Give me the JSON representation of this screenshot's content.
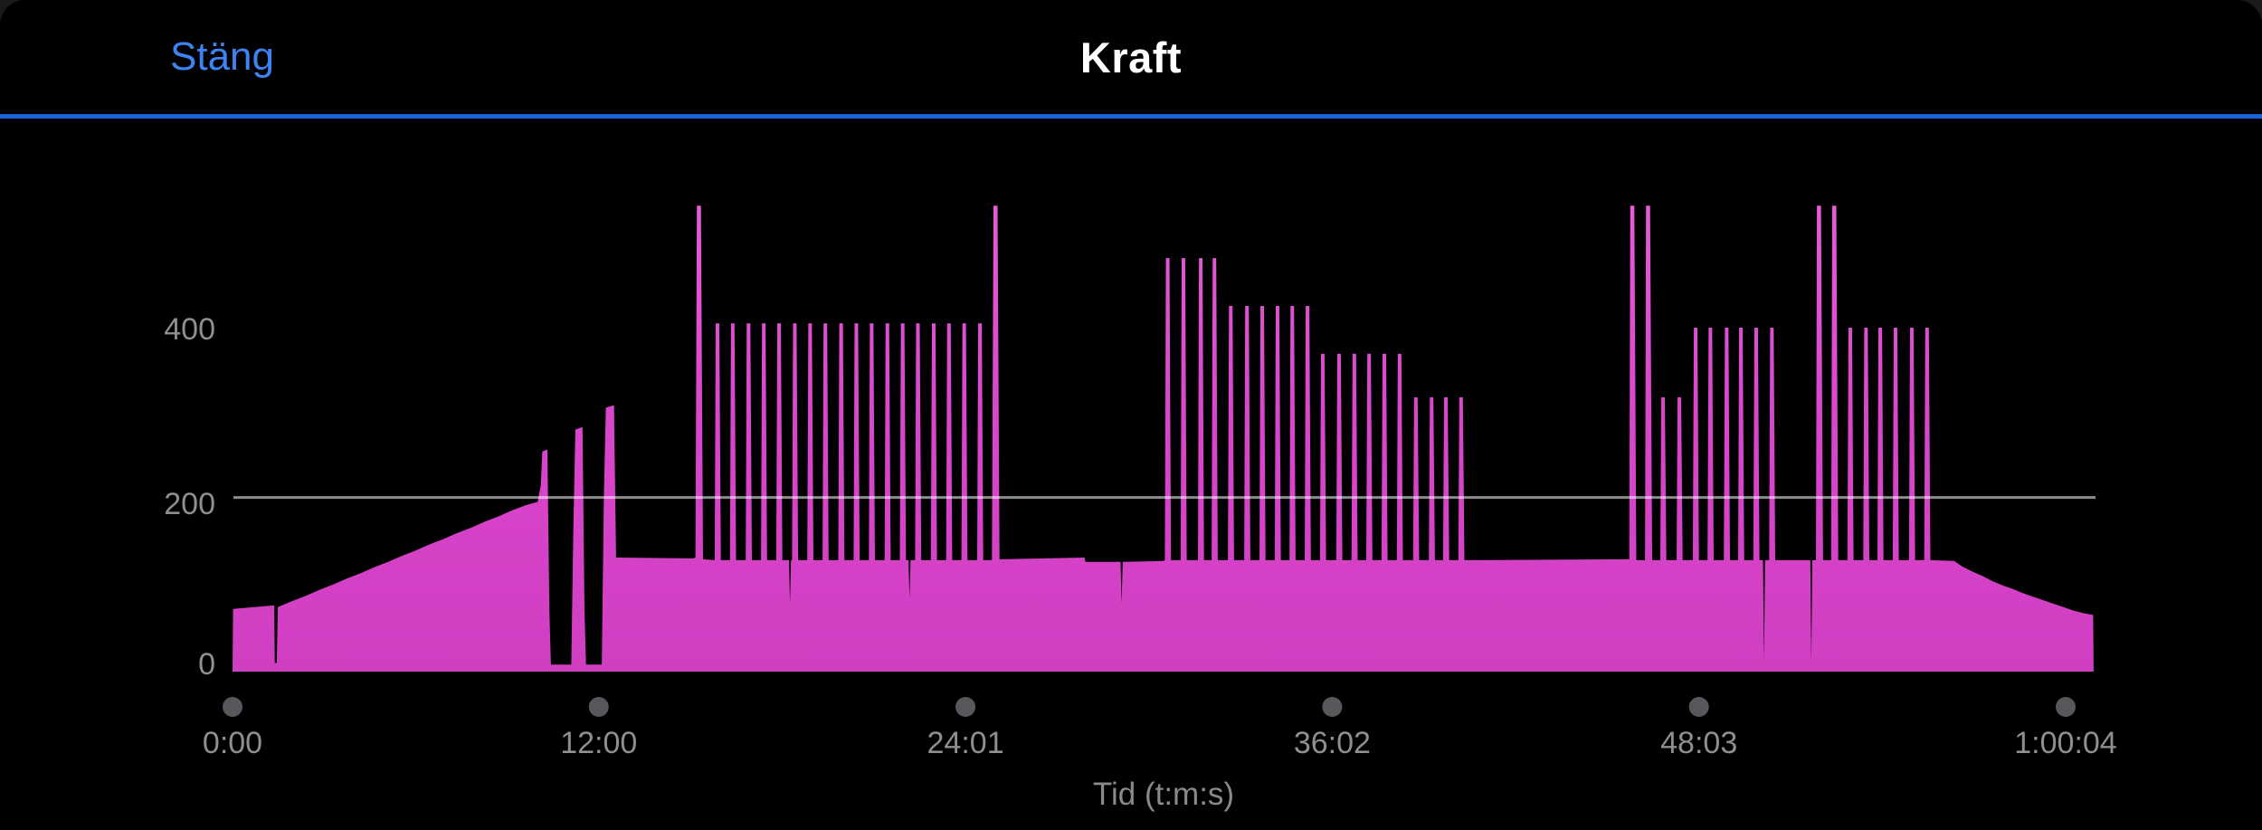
{
  "navbar": {
    "close_label": "Stäng",
    "title": "Kraft"
  },
  "colors": {
    "background": "#000000",
    "nav_separator_blue": "#1a63d8",
    "close_button_blue": "#3f83f2",
    "title_white": "#ffffff",
    "axis_gray": "#8e8e93",
    "tick_dot_gray": "#58585c",
    "gridline": "rgba(255,255,255,0.55)",
    "series_magenta_top": "#e45cd6",
    "series_magenta_mid": "#d946cc",
    "series_magenta_bottom": "#d03ec2"
  },
  "chart_data": {
    "type": "area",
    "title": "Kraft",
    "xlabel": "Tid (t:m:s)",
    "ylabel": "",
    "legend": false,
    "grid": "single horizontal gridline at y=200",
    "gridline_value": 200,
    "ylim": [
      0,
      580
    ],
    "xlim_seconds": [
      0,
      3660
    ],
    "y_ticks": [
      {
        "v": 0,
        "label": "0"
      },
      {
        "v": 200,
        "label": "200"
      },
      {
        "v": 400,
        "label": "400"
      }
    ],
    "x_ticks": [
      {
        "t": 0,
        "label": "0:00"
      },
      {
        "t": 720,
        "label": "12:00"
      },
      {
        "t": 1441,
        "label": "24:01"
      },
      {
        "t": 2162,
        "label": "36:02"
      },
      {
        "t": 2883,
        "label": "48:03"
      },
      {
        "t": 3604,
        "label": "1:00:04"
      }
    ],
    "series": [
      {
        "name": "Kraft",
        "style": "filled-area",
        "points": [
          [
            0,
            0
          ],
          [
            1,
            72
          ],
          [
            60,
            75
          ],
          [
            82,
            76
          ],
          [
            83,
            10
          ],
          [
            87,
            10
          ],
          [
            89,
            74
          ],
          [
            117,
            81
          ],
          [
            144,
            87
          ],
          [
            171,
            94
          ],
          [
            198,
            100
          ],
          [
            225,
            107
          ],
          [
            252,
            113
          ],
          [
            279,
            120
          ],
          [
            306,
            126
          ],
          [
            333,
            133
          ],
          [
            360,
            139
          ],
          [
            387,
            146
          ],
          [
            414,
            152
          ],
          [
            441,
            159
          ],
          [
            468,
            165
          ],
          [
            495,
            172
          ],
          [
            522,
            178
          ],
          [
            549,
            185
          ],
          [
            576,
            191
          ],
          [
            600,
            195
          ],
          [
            606,
            214
          ],
          [
            609,
            253
          ],
          [
            619,
            255
          ],
          [
            623,
            70
          ],
          [
            626,
            8
          ],
          [
            666,
            8
          ],
          [
            670,
            160
          ],
          [
            674,
            278
          ],
          [
            688,
            281
          ],
          [
            692,
            70
          ],
          [
            695,
            8
          ],
          [
            726,
            8
          ],
          [
            730,
            200
          ],
          [
            734,
            303
          ],
          [
            750,
            306
          ],
          [
            754,
            131
          ],
          [
            906,
            130
          ],
          [
            910,
            131
          ],
          [
            913,
            535
          ],
          [
            921,
            535
          ],
          [
            925,
            129
          ],
          [
            948,
            128
          ],
          [
            950,
            400
          ],
          [
            957,
            400
          ],
          [
            960,
            128
          ],
          [
            978,
            128
          ],
          [
            980,
            400
          ],
          [
            987,
            400
          ],
          [
            990,
            128
          ],
          [
            1009,
            128
          ],
          [
            1011,
            400
          ],
          [
            1018,
            400
          ],
          [
            1021,
            128
          ],
          [
            1039,
            128
          ],
          [
            1041,
            400
          ],
          [
            1048,
            400
          ],
          [
            1051,
            128
          ],
          [
            1069,
            128
          ],
          [
            1071,
            400
          ],
          [
            1078,
            400
          ],
          [
            1081,
            128
          ],
          [
            1094,
            128
          ],
          [
            1096,
            78
          ],
          [
            1098,
            128
          ],
          [
            1100,
            128
          ],
          [
            1102,
            400
          ],
          [
            1109,
            400
          ],
          [
            1112,
            128
          ],
          [
            1130,
            128
          ],
          [
            1132,
            400
          ],
          [
            1139,
            400
          ],
          [
            1142,
            128
          ],
          [
            1160,
            128
          ],
          [
            1162,
            400
          ],
          [
            1169,
            400
          ],
          [
            1172,
            128
          ],
          [
            1191,
            128
          ],
          [
            1193,
            400
          ],
          [
            1200,
            400
          ],
          [
            1203,
            128
          ],
          [
            1221,
            128
          ],
          [
            1223,
            400
          ],
          [
            1230,
            400
          ],
          [
            1233,
            128
          ],
          [
            1251,
            128
          ],
          [
            1253,
            400
          ],
          [
            1260,
            400
          ],
          [
            1263,
            128
          ],
          [
            1282,
            128
          ],
          [
            1284,
            400
          ],
          [
            1291,
            400
          ],
          [
            1294,
            128
          ],
          [
            1312,
            128
          ],
          [
            1314,
            400
          ],
          [
            1321,
            400
          ],
          [
            1324,
            128
          ],
          [
            1329,
            128
          ],
          [
            1331,
            85
          ],
          [
            1333,
            128
          ],
          [
            1342,
            128
          ],
          [
            1344,
            400
          ],
          [
            1351,
            400
          ],
          [
            1354,
            128
          ],
          [
            1373,
            128
          ],
          [
            1375,
            400
          ],
          [
            1382,
            400
          ],
          [
            1385,
            128
          ],
          [
            1403,
            128
          ],
          [
            1405,
            400
          ],
          [
            1412,
            400
          ],
          [
            1415,
            128
          ],
          [
            1433,
            128
          ],
          [
            1435,
            400
          ],
          [
            1442,
            400
          ],
          [
            1445,
            128
          ],
          [
            1464,
            128
          ],
          [
            1466,
            400
          ],
          [
            1473,
            400
          ],
          [
            1476,
            128
          ],
          [
            1493,
            128
          ],
          [
            1496,
            535
          ],
          [
            1504,
            535
          ],
          [
            1508,
            129
          ],
          [
            1675,
            131
          ],
          [
            1677,
            126
          ],
          [
            1746,
            126
          ],
          [
            1748,
            78
          ],
          [
            1750,
            126
          ],
          [
            1830,
            127
          ],
          [
            1833,
            128
          ],
          [
            1835,
            475
          ],
          [
            1842,
            475
          ],
          [
            1845,
            128
          ],
          [
            1864,
            128
          ],
          [
            1866,
            475
          ],
          [
            1873,
            475
          ],
          [
            1876,
            128
          ],
          [
            1898,
            128
          ],
          [
            1900,
            475
          ],
          [
            1907,
            475
          ],
          [
            1910,
            128
          ],
          [
            1925,
            128
          ],
          [
            1927,
            475
          ],
          [
            1934,
            475
          ],
          [
            1937,
            128
          ],
          [
            1957,
            128
          ],
          [
            1959,
            420
          ],
          [
            1966,
            420
          ],
          [
            1969,
            128
          ],
          [
            1989,
            128
          ],
          [
            1991,
            420
          ],
          [
            1998,
            420
          ],
          [
            2001,
            128
          ],
          [
            2019,
            128
          ],
          [
            2021,
            420
          ],
          [
            2028,
            420
          ],
          [
            2031,
            128
          ],
          [
            2049,
            128
          ],
          [
            2051,
            420
          ],
          [
            2058,
            420
          ],
          [
            2061,
            128
          ],
          [
            2078,
            128
          ],
          [
            2080,
            420
          ],
          [
            2087,
            420
          ],
          [
            2090,
            128
          ],
          [
            2108,
            128
          ],
          [
            2110,
            420
          ],
          [
            2117,
            420
          ],
          [
            2120,
            128
          ],
          [
            2138,
            128
          ],
          [
            2140,
            365
          ],
          [
            2147,
            365
          ],
          [
            2150,
            128
          ],
          [
            2170,
            128
          ],
          [
            2172,
            365
          ],
          [
            2179,
            365
          ],
          [
            2182,
            128
          ],
          [
            2200,
            128
          ],
          [
            2202,
            365
          ],
          [
            2209,
            365
          ],
          [
            2212,
            128
          ],
          [
            2229,
            128
          ],
          [
            2231,
            365
          ],
          [
            2238,
            365
          ],
          [
            2241,
            128
          ],
          [
            2259,
            128
          ],
          [
            2261,
            365
          ],
          [
            2268,
            365
          ],
          [
            2271,
            128
          ],
          [
            2289,
            128
          ],
          [
            2291,
            365
          ],
          [
            2298,
            365
          ],
          [
            2301,
            128
          ],
          [
            2321,
            128
          ],
          [
            2323,
            315
          ],
          [
            2330,
            315
          ],
          [
            2333,
            128
          ],
          [
            2352,
            128
          ],
          [
            2354,
            315
          ],
          [
            2361,
            315
          ],
          [
            2364,
            128
          ],
          [
            2380,
            128
          ],
          [
            2382,
            315
          ],
          [
            2389,
            315
          ],
          [
            2392,
            128
          ],
          [
            2410,
            128
          ],
          [
            2412,
            315
          ],
          [
            2419,
            315
          ],
          [
            2422,
            128
          ],
          [
            2740,
            129
          ],
          [
            2746,
            129
          ],
          [
            2748,
            535
          ],
          [
            2756,
            535
          ],
          [
            2760,
            128
          ],
          [
            2777,
            128
          ],
          [
            2779,
            535
          ],
          [
            2787,
            535
          ],
          [
            2791,
            128
          ],
          [
            2807,
            128
          ],
          [
            2809,
            315
          ],
          [
            2816,
            315
          ],
          [
            2819,
            128
          ],
          [
            2839,
            128
          ],
          [
            2841,
            315
          ],
          [
            2848,
            315
          ],
          [
            2851,
            128
          ],
          [
            2871,
            128
          ],
          [
            2873,
            395
          ],
          [
            2880,
            395
          ],
          [
            2883,
            128
          ],
          [
            2900,
            128
          ],
          [
            2902,
            395
          ],
          [
            2909,
            395
          ],
          [
            2912,
            128
          ],
          [
            2932,
            128
          ],
          [
            2934,
            395
          ],
          [
            2941,
            395
          ],
          [
            2944,
            128
          ],
          [
            2960,
            128
          ],
          [
            2962,
            395
          ],
          [
            2969,
            395
          ],
          [
            2972,
            128
          ],
          [
            2990,
            128
          ],
          [
            2992,
            395
          ],
          [
            2999,
            395
          ],
          [
            3002,
            128
          ],
          [
            3009,
            128
          ],
          [
            3011,
            12
          ],
          [
            3013,
            128
          ],
          [
            3021,
            128
          ],
          [
            3023,
            395
          ],
          [
            3030,
            395
          ],
          [
            3033,
            128
          ],
          [
            3102,
            128
          ],
          [
            3104,
            12
          ],
          [
            3106,
            128
          ],
          [
            3113,
            128
          ],
          [
            3115,
            535
          ],
          [
            3123,
            535
          ],
          [
            3127,
            128
          ],
          [
            3143,
            128
          ],
          [
            3145,
            535
          ],
          [
            3153,
            535
          ],
          [
            3157,
            128
          ],
          [
            3175,
            128
          ],
          [
            3177,
            395
          ],
          [
            3184,
            395
          ],
          [
            3187,
            128
          ],
          [
            3206,
            128
          ],
          [
            3208,
            395
          ],
          [
            3215,
            395
          ],
          [
            3218,
            128
          ],
          [
            3234,
            128
          ],
          [
            3236,
            395
          ],
          [
            3243,
            395
          ],
          [
            3246,
            128
          ],
          [
            3264,
            128
          ],
          [
            3266,
            395
          ],
          [
            3273,
            395
          ],
          [
            3276,
            128
          ],
          [
            3296,
            128
          ],
          [
            3298,
            395
          ],
          [
            3305,
            395
          ],
          [
            3308,
            128
          ],
          [
            3326,
            128
          ],
          [
            3328,
            395
          ],
          [
            3335,
            395
          ],
          [
            3338,
            128
          ],
          [
            3385,
            127
          ],
          [
            3400,
            121
          ],
          [
            3420,
            115
          ],
          [
            3440,
            110
          ],
          [
            3460,
            104
          ],
          [
            3480,
            99
          ],
          [
            3500,
            95
          ],
          [
            3520,
            90
          ],
          [
            3540,
            86
          ],
          [
            3560,
            82
          ],
          [
            3580,
            78
          ],
          [
            3600,
            74
          ],
          [
            3620,
            70
          ],
          [
            3640,
            67
          ],
          [
            3658,
            65
          ],
          [
            3659,
            0
          ]
        ]
      }
    ]
  }
}
